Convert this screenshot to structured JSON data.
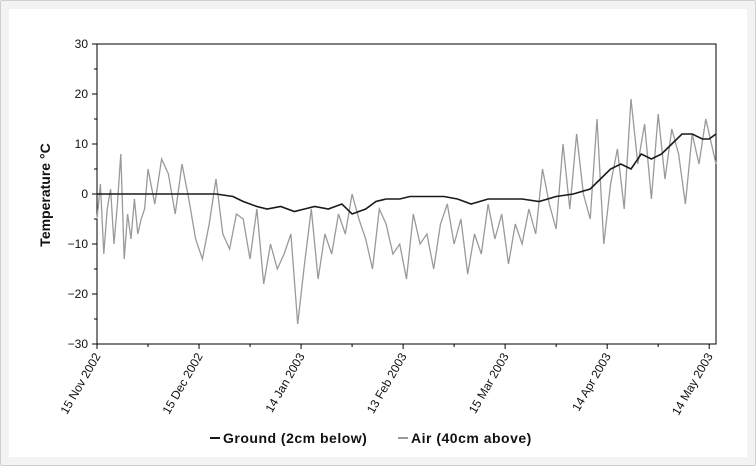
{
  "chart_data": {
    "type": "line",
    "title": "",
    "xlabel": "",
    "ylabel": "Temperature °C",
    "ylim": [
      -30,
      30
    ],
    "yticks": [
      30,
      20,
      10,
      0,
      -10,
      -20,
      -30
    ],
    "y_tick_labels": [
      "30",
      "20",
      "10",
      "0",
      "−10",
      "−20",
      "−30"
    ],
    "xlim": [
      "2002-11-15",
      "2003-05-16"
    ],
    "xticks": [
      "2002-11-15",
      "2002-12-15",
      "2003-01-14",
      "2003-02-13",
      "2003-03-15",
      "2003-04-14",
      "2003-05-14"
    ],
    "x_tick_labels": [
      "15 Nov 2002",
      "15 Dec 2002",
      "14 Jan 2003",
      "13 Feb 2003",
      "15 Mar 2003",
      "14 Apr 2003",
      "14 May 2003"
    ],
    "grid": false,
    "legend_position": "bottom",
    "series": [
      {
        "name": "Ground (2cm below)",
        "color": "#1a1a1a",
        "x": [
          "2002-11-15",
          "2002-11-20",
          "2002-11-25",
          "2002-11-30",
          "2002-12-05",
          "2002-12-10",
          "2002-12-15",
          "2002-12-20",
          "2002-12-25",
          "2002-12-28",
          "2003-01-01",
          "2003-01-04",
          "2003-01-08",
          "2003-01-12",
          "2003-01-15",
          "2003-01-18",
          "2003-01-22",
          "2003-01-26",
          "2003-01-29",
          "2003-02-02",
          "2003-02-05",
          "2003-02-08",
          "2003-02-12",
          "2003-02-15",
          "2003-02-20",
          "2003-02-25",
          "2003-03-01",
          "2003-03-05",
          "2003-03-10",
          "2003-03-15",
          "2003-03-20",
          "2003-03-25",
          "2003-03-30",
          "2003-04-04",
          "2003-04-09",
          "2003-04-12",
          "2003-04-15",
          "2003-04-18",
          "2003-04-21",
          "2003-04-24",
          "2003-04-27",
          "2003-04-30",
          "2003-05-03",
          "2003-05-06",
          "2003-05-09",
          "2003-05-12",
          "2003-05-14",
          "2003-05-16"
        ],
        "values": [
          0,
          0,
          0,
          0,
          0,
          0,
          0,
          0,
          -0.5,
          -1.5,
          -2.5,
          -3,
          -2.5,
          -3.5,
          -3,
          -2.5,
          -3,
          -2,
          -4,
          -3,
          -1.5,
          -1,
          -1,
          -0.5,
          -0.5,
          -0.5,
          -1,
          -2,
          -1,
          -1,
          -1,
          -1.5,
          -0.5,
          0,
          1,
          3,
          5,
          6,
          5,
          8,
          7,
          8,
          10,
          12,
          12,
          11,
          11,
          12
        ]
      },
      {
        "name": "Air (40cm above)",
        "color": "#9a9a9a",
        "x": [
          "2002-11-15",
          "2002-11-16",
          "2002-11-17",
          "2002-11-18",
          "2002-11-19",
          "2002-11-20",
          "2002-11-21",
          "2002-11-22",
          "2002-11-23",
          "2002-11-24",
          "2002-11-25",
          "2002-11-26",
          "2002-11-27",
          "2002-11-28",
          "2002-11-29",
          "2002-11-30",
          "2002-12-02",
          "2002-12-04",
          "2002-12-06",
          "2002-12-08",
          "2002-12-10",
          "2002-12-12",
          "2002-12-14",
          "2002-12-16",
          "2002-12-18",
          "2002-12-20",
          "2002-12-22",
          "2002-12-24",
          "2002-12-26",
          "2002-12-28",
          "2002-12-30",
          "2003-01-01",
          "2003-01-03",
          "2003-01-05",
          "2003-01-07",
          "2003-01-09",
          "2003-01-11",
          "2003-01-13",
          "2003-01-15",
          "2003-01-17",
          "2003-01-19",
          "2003-01-21",
          "2003-01-23",
          "2003-01-25",
          "2003-01-27",
          "2003-01-29",
          "2003-01-31",
          "2003-02-02",
          "2003-02-04",
          "2003-02-06",
          "2003-02-08",
          "2003-02-10",
          "2003-02-12",
          "2003-02-14",
          "2003-02-16",
          "2003-02-18",
          "2003-02-20",
          "2003-02-22",
          "2003-02-24",
          "2003-02-26",
          "2003-02-28",
          "2003-03-02",
          "2003-03-04",
          "2003-03-06",
          "2003-03-08",
          "2003-03-10",
          "2003-03-12",
          "2003-03-14",
          "2003-03-16",
          "2003-03-18",
          "2003-03-20",
          "2003-03-22",
          "2003-03-24",
          "2003-03-26",
          "2003-03-28",
          "2003-03-30",
          "2003-04-01",
          "2003-04-03",
          "2003-04-05",
          "2003-04-07",
          "2003-04-09",
          "2003-04-11",
          "2003-04-13",
          "2003-04-15",
          "2003-04-17",
          "2003-04-19",
          "2003-04-21",
          "2003-04-23",
          "2003-04-25",
          "2003-04-27",
          "2003-04-29",
          "2003-05-01",
          "2003-05-03",
          "2003-05-05",
          "2003-05-07",
          "2003-05-09",
          "2003-05-11",
          "2003-05-13",
          "2003-05-15",
          "2003-05-16"
        ],
        "values": [
          -5,
          2,
          -12,
          -3,
          1,
          -10,
          -2,
          8,
          -13,
          -4,
          -9,
          -1,
          -8,
          -5,
          -3,
          5,
          -2,
          7,
          4,
          -4,
          6,
          -1,
          -9,
          -13,
          -6,
          3,
          -8,
          -11,
          -4,
          -5,
          -13,
          -3,
          -18,
          -10,
          -15,
          -12,
          -8,
          -26,
          -14,
          -3,
          -17,
          -8,
          -12,
          -4,
          -8,
          0,
          -5,
          -9,
          -15,
          -3,
          -6,
          -12,
          -10,
          -17,
          -4,
          -10,
          -8,
          -15,
          -6,
          -2,
          -10,
          -5,
          -16,
          -8,
          -12,
          -2,
          -9,
          -4,
          -14,
          -6,
          -10,
          -3,
          -8,
          5,
          -2,
          -7,
          10,
          -3,
          12,
          0,
          -5,
          15,
          -10,
          2,
          9,
          -3,
          19,
          6,
          14,
          -1,
          16,
          3,
          13,
          8,
          -2,
          12,
          6,
          15,
          9,
          6
        ]
      }
    ]
  }
}
